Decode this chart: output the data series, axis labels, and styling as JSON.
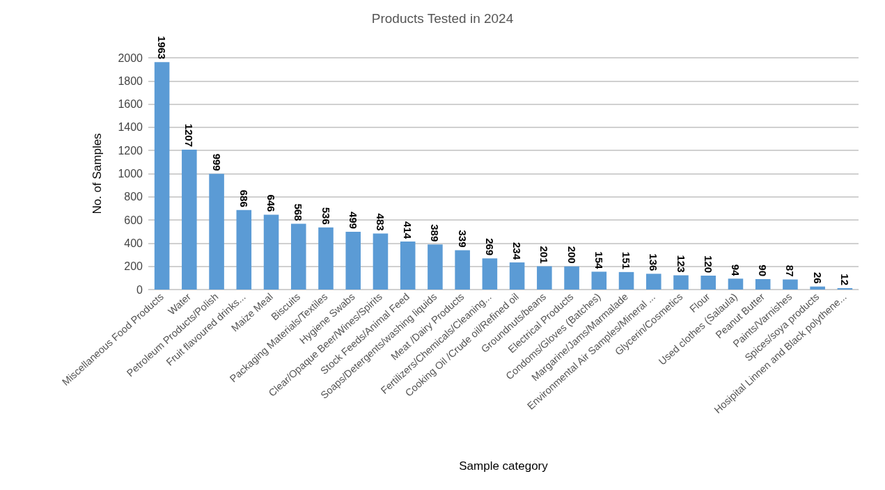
{
  "chart_data": {
    "type": "bar",
    "title": "Products Tested in 2024",
    "xlabel": "Sample category",
    "ylabel": "No. of Samples",
    "categories": [
      "Miscellaneous Food Products",
      "Water",
      "Petroleum Products/Polish",
      "Fruit flavoured drinks...",
      "Maize Meal",
      "Biscuits",
      "Packaging Materials/Textiles",
      "Hygiene Swabs",
      "Clear/Opaque Beer/Wines/Spirits",
      "Stock Feeds/Animal Feed",
      "Soaps/Detergents/washing liquids",
      "Meat /Dairy Products",
      "Fertilizers/Chemicals/Cleaning...",
      "Cooking Oil /Crude oil/Refined oil",
      "Groundnuts/beans",
      "Electrical Products",
      "Condoms/Gloves (Batches)",
      "Margarine/Jams/Marmalade",
      "Environmental Air Samples/Mineral ...",
      "Glycerin/Cosmetics",
      "Flour",
      "Used clothes (Salaula)",
      "Peanut Butter",
      "Paints/Varnishes",
      "Spices/soya products",
      "Hosipital Linnen and Black polythene..."
    ],
    "values": [
      1963,
      1207,
      999,
      686,
      646,
      568,
      536,
      499,
      483,
      414,
      389,
      339,
      269,
      234,
      201,
      200,
      154,
      151,
      136,
      123,
      120,
      94,
      90,
      87,
      26,
      12
    ],
    "color": "#5b9bd5",
    "ylim": [
      0,
      2000
    ],
    "yticks": [
      0,
      200,
      400,
      600,
      800,
      1000,
      1200,
      1400,
      1600,
      1800,
      2000
    ],
    "grid": "y",
    "data_labels": true
  }
}
